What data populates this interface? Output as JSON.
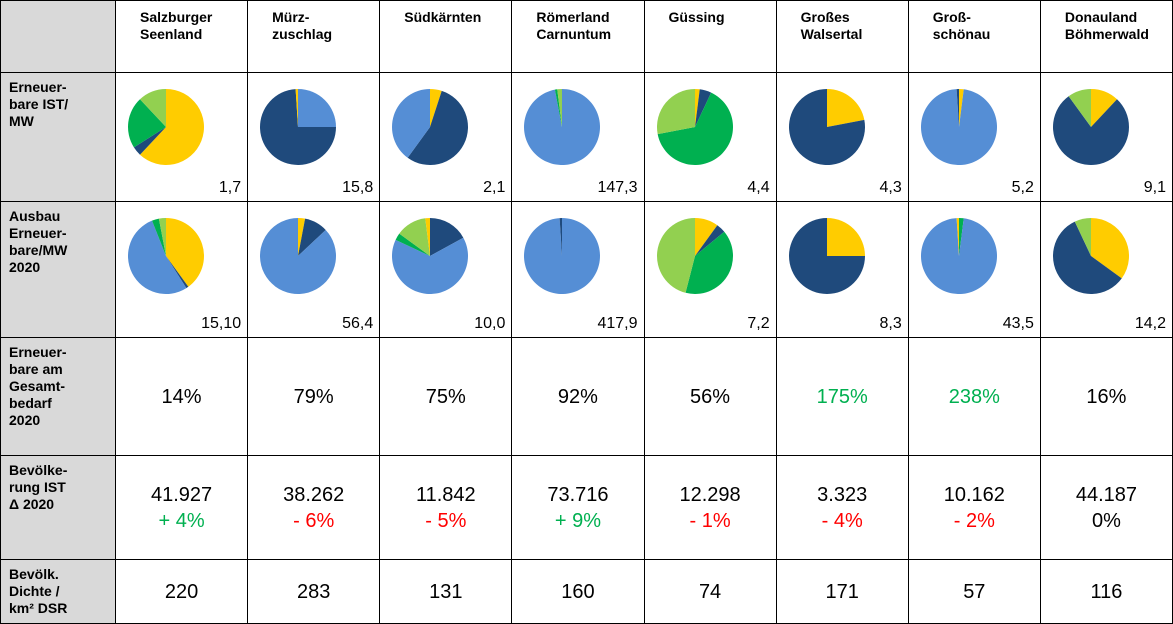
{
  "table": {
    "columns": [
      "Salzburger\nSeenland",
      "Mürz-\nzuschlag",
      "Südkärnten",
      "Römerland\nCarnuntum",
      "Güssing",
      "Großes\nWalsertal",
      "Groß-\nschönau",
      "Donauland\nBöhmerwald"
    ],
    "rows": [
      {
        "label": "Erneuer-\nbare IST/\nMW",
        "kind": "pie",
        "cells": [
          {
            "value_label": "1,7",
            "slices": [
              {
                "value": 62,
                "color": "#ffcc00"
              },
              {
                "value": 4,
                "color": "#1f4a7c"
              },
              {
                "value": 22,
                "color": "#00b050"
              },
              {
                "value": 12,
                "color": "#92d050"
              }
            ]
          },
          {
            "value_label": "15,8",
            "slices": [
              {
                "value": 25,
                "color": "#558ed5"
              },
              {
                "value": 74,
                "color": "#1f4a7c"
              },
              {
                "value": 1,
                "color": "#ffcc00"
              }
            ]
          },
          {
            "value_label": "2,1",
            "slices": [
              {
                "value": 5,
                "color": "#ffcc00"
              },
              {
                "value": 55,
                "color": "#1f4a7c"
              },
              {
                "value": 40,
                "color": "#558ed5"
              }
            ]
          },
          {
            "value_label": "147,3",
            "slices": [
              {
                "value": 97,
                "color": "#558ed5"
              },
              {
                "value": 1,
                "color": "#00b050"
              },
              {
                "value": 2,
                "color": "#92d050"
              }
            ]
          },
          {
            "value_label": "4,4",
            "slices": [
              {
                "value": 2,
                "color": "#ffcc00"
              },
              {
                "value": 5,
                "color": "#1f4a7c"
              },
              {
                "value": 65,
                "color": "#00b050"
              },
              {
                "value": 28,
                "color": "#92d050"
              }
            ]
          },
          {
            "value_label": "4,3",
            "slices": [
              {
                "value": 22,
                "color": "#ffcc00"
              },
              {
                "value": 78,
                "color": "#1f4a7c"
              }
            ]
          },
          {
            "value_label": "5,2",
            "slices": [
              {
                "value": 2,
                "color": "#ffcc00"
              },
              {
                "value": 97,
                "color": "#558ed5"
              },
              {
                "value": 1,
                "color": "#1f4a7c"
              }
            ]
          },
          {
            "value_label": "9,1",
            "slices": [
              {
                "value": 12,
                "color": "#ffcc00"
              },
              {
                "value": 78,
                "color": "#1f4a7c"
              },
              {
                "value": 10,
                "color": "#92d050"
              }
            ]
          }
        ]
      },
      {
        "label": "Ausbau\nErneuer-\nbare/MW\n2020",
        "kind": "pie",
        "cells": [
          {
            "value_label": "15,10",
            "slices": [
              {
                "value": 40,
                "color": "#ffcc00"
              },
              {
                "value": 1,
                "color": "#1f4a7c"
              },
              {
                "value": 53,
                "color": "#558ed5"
              },
              {
                "value": 3,
                "color": "#00b050"
              },
              {
                "value": 3,
                "color": "#92d050"
              }
            ]
          },
          {
            "value_label": "56,4",
            "slices": [
              {
                "value": 3,
                "color": "#ffcc00"
              },
              {
                "value": 10,
                "color": "#1f4a7c"
              },
              {
                "value": 87,
                "color": "#558ed5"
              }
            ]
          },
          {
            "value_label": "10,0",
            "slices": [
              {
                "value": 17,
                "color": "#1f4a7c"
              },
              {
                "value": 65,
                "color": "#558ed5"
              },
              {
                "value": 3,
                "color": "#00b050"
              },
              {
                "value": 13,
                "color": "#92d050"
              },
              {
                "value": 2,
                "color": "#ffcc00"
              }
            ]
          },
          {
            "value_label": "417,9",
            "slices": [
              {
                "value": 99,
                "color": "#558ed5"
              },
              {
                "value": 1,
                "color": "#1f4a7c"
              }
            ]
          },
          {
            "value_label": "7,2",
            "slices": [
              {
                "value": 10,
                "color": "#ffcc00"
              },
              {
                "value": 4,
                "color": "#1f4a7c"
              },
              {
                "value": 40,
                "color": "#00b050"
              },
              {
                "value": 46,
                "color": "#92d050"
              }
            ]
          },
          {
            "value_label": "8,3",
            "slices": [
              {
                "value": 25,
                "color": "#ffcc00"
              },
              {
                "value": 75,
                "color": "#1f4a7c"
              }
            ]
          },
          {
            "value_label": "43,5",
            "slices": [
              {
                "value": 2,
                "color": "#00b050"
              },
              {
                "value": 97,
                "color": "#558ed5"
              },
              {
                "value": 1,
                "color": "#ffcc00"
              }
            ]
          },
          {
            "value_label": "14,2",
            "slices": [
              {
                "value": 35,
                "color": "#ffcc00"
              },
              {
                "value": 58,
                "color": "#1f4a7c"
              },
              {
                "value": 7,
                "color": "#92d050"
              }
            ]
          }
        ]
      },
      {
        "label": "Erneuer-\nbare am\nGesamt-\nbedarf\n2020",
        "kind": "text",
        "cells": [
          {
            "text": "14%",
            "color": "#000000"
          },
          {
            "text": "79%",
            "color": "#000000"
          },
          {
            "text": "75%",
            "color": "#000000"
          },
          {
            "text": "92%",
            "color": "#000000"
          },
          {
            "text": "56%",
            "color": "#000000"
          },
          {
            "text": "175%",
            "color": "#00b050"
          },
          {
            "text": "238%",
            "color": "#00b050"
          },
          {
            "text": "16%",
            "color": "#000000"
          }
        ]
      },
      {
        "label": "Bevölke-\nrung IST\nΔ 2020",
        "kind": "text",
        "cells": [
          {
            "text": "41.927",
            "change": "+ 4%",
            "change_color": "#00b050"
          },
          {
            "text": "38.262",
            "change": "- 6%",
            "change_color": "#ff0000"
          },
          {
            "text": "11.842",
            "change": "- 5%",
            "change_color": "#ff0000"
          },
          {
            "text": "73.716",
            "change": "+ 9%",
            "change_color": "#00b050"
          },
          {
            "text": "12.298",
            "change": "- 1%",
            "change_color": "#ff0000"
          },
          {
            "text": "3.323",
            "change": "- 4%",
            "change_color": "#ff0000"
          },
          {
            "text": "10.162",
            "change": "- 2%",
            "change_color": "#ff0000"
          },
          {
            "text": "44.187",
            "change": "0%",
            "change_color": "#000000"
          }
        ]
      },
      {
        "label": "Bevölk.\nDichte /\nkm² DSR",
        "kind": "text",
        "cells": [
          {
            "text": "220"
          },
          {
            "text": "283"
          },
          {
            "text": "131"
          },
          {
            "text": "160"
          },
          {
            "text": "74"
          },
          {
            "text": "171"
          },
          {
            "text": "57"
          },
          {
            "text": "116"
          }
        ]
      }
    ]
  }
}
